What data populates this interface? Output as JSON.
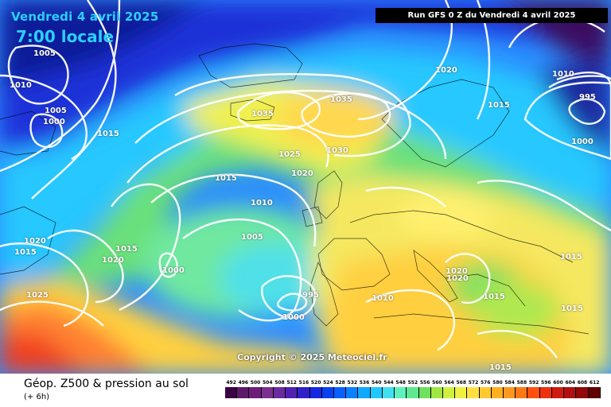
{
  "overlay": {
    "date": "Vendredi 4 avril 2025",
    "time": "7:00 locale",
    "run": "Run GFS 0 Z du Vendredi 4 avril 2025",
    "copyright": "Copyright © 2025 Meteociel.fr"
  },
  "legend": {
    "title": "Géop. Z500 & pression au sol",
    "subtitle": "(+ 6h)",
    "scale_values": [
      "492",
      "496",
      "500",
      "504",
      "508",
      "512",
      "516",
      "520",
      "524",
      "528",
      "532",
      "536",
      "540",
      "544",
      "548",
      "552",
      "556",
      "560",
      "564",
      "568",
      "572",
      "576",
      "580",
      "584",
      "588",
      "592",
      "596",
      "600",
      "604",
      "608",
      "612"
    ],
    "scale_colors": [
      "#3b0044",
      "#5c1a6b",
      "#6e1e7a",
      "#7b2f8f",
      "#6a2aa0",
      "#5020b0",
      "#3020c8",
      "#1828e0",
      "#0a40f0",
      "#0a60ff",
      "#0a80ff",
      "#10a8ff",
      "#20c8ff",
      "#40e0f0",
      "#60f0c0",
      "#60e890",
      "#70e060",
      "#a0e840",
      "#d0f040",
      "#f0f040",
      "#ffe040",
      "#ffc830",
      "#ffb020",
      "#ff9820",
      "#ff7818",
      "#ff5010",
      "#ee3010",
      "#d01a10",
      "#b01010",
      "#900808",
      "#600000"
    ]
  },
  "isobars": [
    {
      "value": "1005",
      "pos": "greenland-west"
    },
    {
      "value": "1010",
      "pos": "greenland-southwest"
    },
    {
      "value": "1005",
      "pos": "greenland-south"
    },
    {
      "value": "1000",
      "pos": "greenland-south-low"
    },
    {
      "value": "1015",
      "pos": "labrador-sea"
    },
    {
      "value": "1035",
      "pos": "iceland"
    },
    {
      "value": "1035",
      "pos": "norwegian-sea"
    },
    {
      "value": "1030",
      "pos": "north-sea-north"
    },
    {
      "value": "1025",
      "pos": "faroe"
    },
    {
      "value": "1020",
      "pos": "scotland-west"
    },
    {
      "value": "1015",
      "pos": "atlantic-north"
    },
    {
      "value": "1010",
      "pos": "atlantic-mid"
    },
    {
      "value": "1005",
      "pos": "atlantic-south"
    },
    {
      "value": "1000",
      "pos": "azores-low-west"
    },
    {
      "value": "995",
      "pos": "iberia-low"
    },
    {
      "value": "1000",
      "pos": "iberia-low-ring"
    },
    {
      "value": "1010",
      "pos": "spain-east"
    },
    {
      "value": "1015",
      "pos": "newfoundland"
    },
    {
      "value": "1020",
      "pos": "newfoundland-east"
    },
    {
      "value": "1020",
      "pos": "canada-coast"
    },
    {
      "value": "1015",
      "pos": "canada-coast-2"
    },
    {
      "value": "1025",
      "pos": "subtropics-west"
    },
    {
      "value": "1020",
      "pos": "scandinavia"
    },
    {
      "value": "1015",
      "pos": "finland"
    },
    {
      "value": "1010",
      "pos": "russia-north"
    },
    {
      "value": "995",
      "pos": "russia-low"
    },
    {
      "value": "1000",
      "pos": "russia-low-ring"
    },
    {
      "value": "1020",
      "pos": "italy-north"
    },
    {
      "value": "1020",
      "pos": "italy-mid"
    },
    {
      "value": "1015",
      "pos": "balkans"
    },
    {
      "value": "1015",
      "pos": "ukraine"
    },
    {
      "value": "1015",
      "pos": "turkey"
    },
    {
      "value": "1015",
      "pos": "north-africa-east"
    }
  ]
}
